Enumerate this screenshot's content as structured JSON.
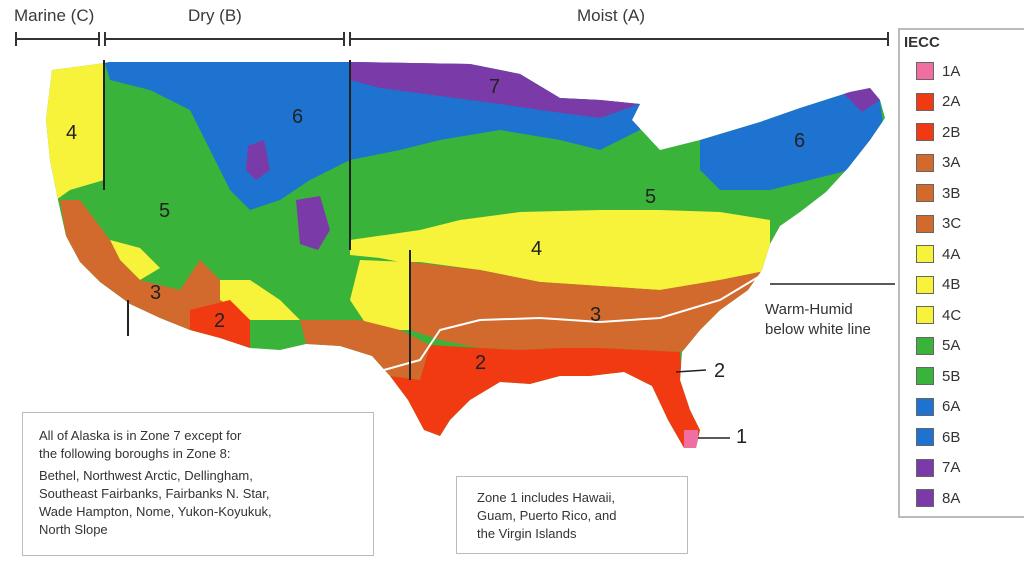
{
  "header": {
    "marine": "Marine (C)",
    "dry": "Dry (B)",
    "moist": "Moist (A)"
  },
  "zones_on_map": [
    "4",
    "6",
    "7",
    "6",
    "5",
    "5",
    "4",
    "3",
    "3",
    "2",
    "2",
    "2",
    "1"
  ],
  "legend": {
    "title": "IECC",
    "items": [
      {
        "label": "1A",
        "color": "#f06ea0"
      },
      {
        "label": "2A",
        "color": "#f23a12"
      },
      {
        "label": "2B",
        "color": "#f23a12"
      },
      {
        "label": "3A",
        "color": "#d2692d"
      },
      {
        "label": "3B",
        "color": "#d2692d"
      },
      {
        "label": "3C",
        "color": "#d2692d"
      },
      {
        "label": "4A",
        "color": "#f7f23a"
      },
      {
        "label": "4B",
        "color": "#f7f23a"
      },
      {
        "label": "4C",
        "color": "#f7f23a"
      },
      {
        "label": "5A",
        "color": "#3ab33a"
      },
      {
        "label": "5B",
        "color": "#3ab33a"
      },
      {
        "label": "6A",
        "color": "#1f73d0"
      },
      {
        "label": "6B",
        "color": "#1f73d0"
      },
      {
        "label": "7A",
        "color": "#7a3aa8"
      },
      {
        "label": "8A",
        "color": "#7a3aa8"
      }
    ]
  },
  "warm_humid": {
    "line1": "Warm-Humid",
    "line2": "below white line"
  },
  "alaska_note": {
    "line1": "All of Alaska is in Zone 7 except for",
    "line2": "the following boroughs in Zone 8:",
    "line3": "Bethel, Northwest Arctic, Dellingham,",
    "line4": "Southeast Fairbanks, Fairbanks N. Star,",
    "line5": "Wade Hampton, Nome, Yukon-Koyukuk,",
    "line6": "North Slope"
  },
  "zone1_note": {
    "line1": "Zone 1 includes Hawaii,",
    "line2": "Guam, Puerto Rico, and",
    "line3": "the Virgin Islands"
  },
  "colors": {
    "zone1": "#f06ea0",
    "zone2": "#f23a12",
    "zone3": "#d2692d",
    "zone4": "#f7f23a",
    "zone5": "#3ab33a",
    "zone6": "#1f73d0",
    "zone7": "#7a3aa8"
  }
}
